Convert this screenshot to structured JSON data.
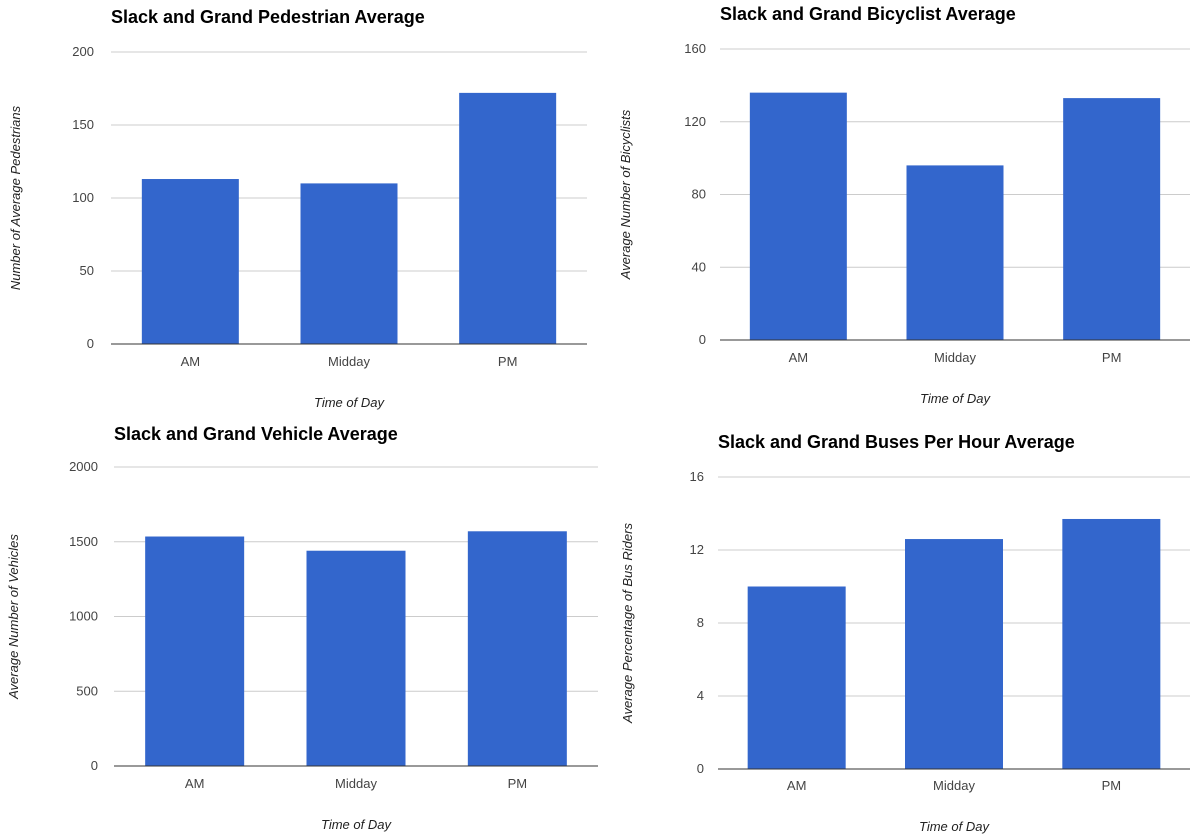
{
  "chart_data": [
    {
      "type": "bar",
      "title": "Slack and Grand Pedestrian Average",
      "xlabel": "Time of Day",
      "ylabel": "Number of Average Pedestrians",
      "categories": [
        "AM",
        "Midday",
        "PM"
      ],
      "values": [
        113,
        110,
        172
      ],
      "ylim": [
        0,
        200
      ],
      "yticks": [
        0,
        50,
        100,
        150,
        200
      ],
      "grid": true,
      "legend": "none",
      "bar_color": "#3366cc"
    },
    {
      "type": "bar",
      "title": "Slack and Grand Bicyclist Average",
      "xlabel": "Time of Day",
      "ylabel": "Average Number of Bicyclists",
      "categories": [
        "AM",
        "Midday",
        "PM"
      ],
      "values": [
        136,
        96,
        133
      ],
      "ylim": [
        0,
        160
      ],
      "yticks": [
        0,
        40,
        80,
        120,
        160
      ],
      "grid": true,
      "legend": "none",
      "bar_color": "#3366cc"
    },
    {
      "type": "bar",
      "title": "Slack and Grand Vehicle Average",
      "xlabel": "Time of Day",
      "ylabel": "Average Number of Vehicles",
      "categories": [
        "AM",
        "Midday",
        "PM"
      ],
      "values": [
        1535,
        1440,
        1570
      ],
      "ylim": [
        0,
        2000
      ],
      "yticks": [
        0,
        500,
        1000,
        1500,
        2000
      ],
      "grid": true,
      "legend": "none",
      "bar_color": "#3366cc"
    },
    {
      "type": "bar",
      "title": "Slack and Grand Buses Per Hour Average",
      "xlabel": "Time of Day",
      "ylabel": "Average Percentage of Bus Riders",
      "categories": [
        "AM",
        "Midday",
        "PM"
      ],
      "values": [
        10,
        12.6,
        13.7
      ],
      "ylim": [
        0,
        16
      ],
      "yticks": [
        0,
        4,
        8,
        12,
        16
      ],
      "grid": true,
      "legend": "none",
      "bar_color": "#3366cc"
    }
  ]
}
